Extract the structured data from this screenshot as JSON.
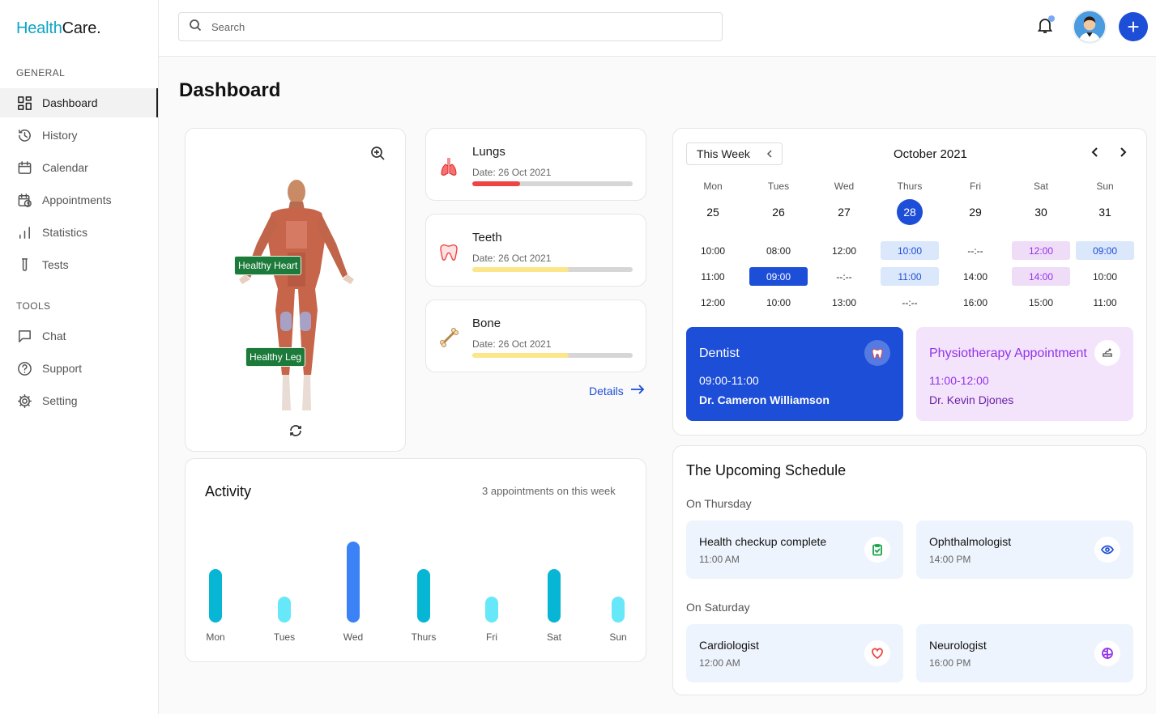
{
  "brand": {
    "part1": "Health",
    "part2": "Care."
  },
  "sidebar": {
    "general_label": "GENERAL",
    "tools_label": "TOOLS",
    "items": [
      {
        "label": "Dashboard",
        "icon": "dashboard-icon"
      },
      {
        "label": "History",
        "icon": "history-icon"
      },
      {
        "label": "Calendar",
        "icon": "calendar-icon"
      },
      {
        "label": "Appointments",
        "icon": "appointments-icon"
      },
      {
        "label": "Statistics",
        "icon": "statistics-icon"
      },
      {
        "label": "Tests",
        "icon": "test-tube-icon"
      }
    ],
    "tools": [
      {
        "label": "Chat",
        "icon": "chat-icon"
      },
      {
        "label": "Support",
        "icon": "support-icon"
      },
      {
        "label": "Setting",
        "icon": "gear-icon"
      }
    ]
  },
  "search": {
    "placeholder": "Search"
  },
  "page_title": "Dashboard",
  "body_map": {
    "labels": [
      "Healthy Heart",
      "Healthy Leg"
    ]
  },
  "organs": [
    {
      "name": "Lungs",
      "date": "Date: 26 Oct 2021",
      "level": 0.3,
      "color": "#ef4444"
    },
    {
      "name": "Teeth",
      "date": "Date: 26 Oct 2021",
      "level": 0.6,
      "color": "#fde68a"
    },
    {
      "name": "Bone",
      "date": "Date: 26 Oct 2021",
      "level": 0.6,
      "color": "#fde68a"
    }
  ],
  "details_label": "Details",
  "activity": {
    "title": "Activity",
    "subtitle": "3 appointments on this week",
    "chart_data": {
      "type": "bar",
      "categories": [
        "Mon",
        "Tues",
        "Wed",
        "Thurs",
        "Fri",
        "Sat",
        "Sun"
      ],
      "values": [
        66,
        32,
        100,
        66,
        32,
        66,
        32
      ],
      "colors": [
        "#06b6d4",
        "#67e8f9",
        "#3b82f6",
        "#06b6d4",
        "#67e8f9",
        "#06b6d4",
        "#67e8f9"
      ]
    }
  },
  "calendar": {
    "week_label": "This Week",
    "month": "October 2021",
    "days": [
      {
        "name": "Mon",
        "num": "25",
        "slots": [
          {
            "t": "10:00",
            "s": ""
          },
          {
            "t": "11:00",
            "s": ""
          },
          {
            "t": "12:00",
            "s": ""
          }
        ]
      },
      {
        "name": "Tues",
        "num": "26",
        "slots": [
          {
            "t": "08:00",
            "s": ""
          },
          {
            "t": "09:00",
            "s": "dark"
          },
          {
            "t": "10:00",
            "s": ""
          }
        ]
      },
      {
        "name": "Wed",
        "num": "27",
        "slots": [
          {
            "t": "12:00",
            "s": ""
          },
          {
            "t": "--:--",
            "s": ""
          },
          {
            "t": "13:00",
            "s": ""
          }
        ]
      },
      {
        "name": "Thurs",
        "num": "28",
        "selected": true,
        "slots": [
          {
            "t": "10:00",
            "s": "light"
          },
          {
            "t": "11:00",
            "s": "light"
          },
          {
            "t": "--:--",
            "s": ""
          }
        ]
      },
      {
        "name": "Fri",
        "num": "29",
        "slots": [
          {
            "t": "--:--",
            "s": ""
          },
          {
            "t": "14:00",
            "s": ""
          },
          {
            "t": "16:00",
            "s": ""
          }
        ]
      },
      {
        "name": "Sat",
        "num": "30",
        "slots": [
          {
            "t": "12:00",
            "s": "purple"
          },
          {
            "t": "14:00",
            "s": "purple"
          },
          {
            "t": "15:00",
            "s": ""
          }
        ]
      },
      {
        "name": "Sun",
        "num": "31",
        "slots": [
          {
            "t": "09:00",
            "s": "light"
          },
          {
            "t": "10:00",
            "s": ""
          },
          {
            "t": "11:00",
            "s": ""
          }
        ]
      }
    ],
    "appointments": [
      {
        "title": "Dentist",
        "time": "09:00-11:00",
        "doctor": "Dr. Cameron Williamson",
        "icon": "tooth-icon"
      },
      {
        "title": "Physiotherapy Appointment",
        "time": "11:00-12:00",
        "doctor": "Dr. Kevin Djones",
        "icon": "physiotherapy-icon"
      }
    ]
  },
  "upcoming": {
    "title": "The Upcoming Schedule",
    "groups": [
      {
        "day": "On Thursday",
        "items": [
          {
            "name": "Health checkup complete",
            "time": "11:00 AM",
            "icon": "clipboard-check-icon",
            "color": "#16a34a"
          },
          {
            "name": "Ophthalmologist",
            "time": "14:00 PM",
            "icon": "eye-icon",
            "color": "#1d4ed8"
          }
        ]
      },
      {
        "day": "On Saturday",
        "items": [
          {
            "name": "Cardiologist",
            "time": "12:00 AM",
            "icon": "heart-icon",
            "color": "#ef4444"
          },
          {
            "name": "Neurologist",
            "time": "16:00 PM",
            "icon": "brain-icon",
            "color": "#9333ea"
          }
        ]
      }
    ]
  }
}
